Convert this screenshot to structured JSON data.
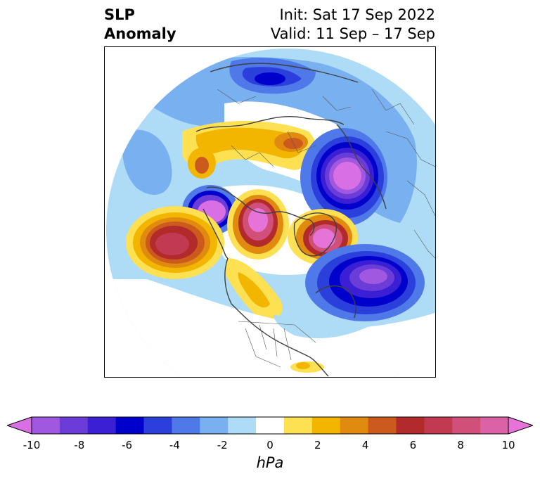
{
  "title": {
    "left_lines": [
      "SLP",
      "Anomaly"
    ],
    "right_lines": [
      "Init: Sat 17 Sep 2022",
      "Valid: 11 Sep – 17 Sep"
    ]
  },
  "map": {
    "projection": "north-polar-stereographic",
    "variable": "sea level pressure anomaly",
    "features": [
      {
        "type": "low",
        "region": "northern Scandinavia / Barents Sea",
        "min_hPa": -6
      },
      {
        "type": "low",
        "region": "western Siberia",
        "min_hPa": -10
      },
      {
        "type": "low",
        "region": "Aleutians / Bering Sea",
        "min_hPa": -10
      },
      {
        "type": "low",
        "region": "North Atlantic south of Greenland",
        "min_hPa": -9
      },
      {
        "type": "high",
        "region": "Gulf of Alaska / North Pacific",
        "max_hPa": 7
      },
      {
        "type": "high",
        "region": "Beaufort Sea / Arctic Alaska",
        "max_hPa": 10
      },
      {
        "type": "high",
        "region": "Greenland",
        "max_hPa": 10
      },
      {
        "type": "high",
        "region": "northern Europe / Arctic Russia",
        "max_hPa": 5
      },
      {
        "type": "high",
        "region": "western Canada to central US",
        "max_hPa": 3
      }
    ]
  },
  "colorbar": {
    "unit": "hPa",
    "ticks": [
      "-10",
      "-8",
      "-6",
      "-4",
      "-2",
      "0",
      "2",
      "4",
      "6",
      "8",
      "10"
    ],
    "colors": [
      "#d96fe4",
      "#a058e0",
      "#6b3cd8",
      "#3a1fd4",
      "#0000cc",
      "#2a3fdc",
      "#4f78e8",
      "#78b0f0",
      "#aedcf7",
      "#ffffff",
      "#fde153",
      "#f3b600",
      "#e08a10",
      "#cc5a1c",
      "#b22a2a",
      "#c23a52",
      "#d0507a",
      "#dc62a8",
      "#e673d8"
    ]
  }
}
